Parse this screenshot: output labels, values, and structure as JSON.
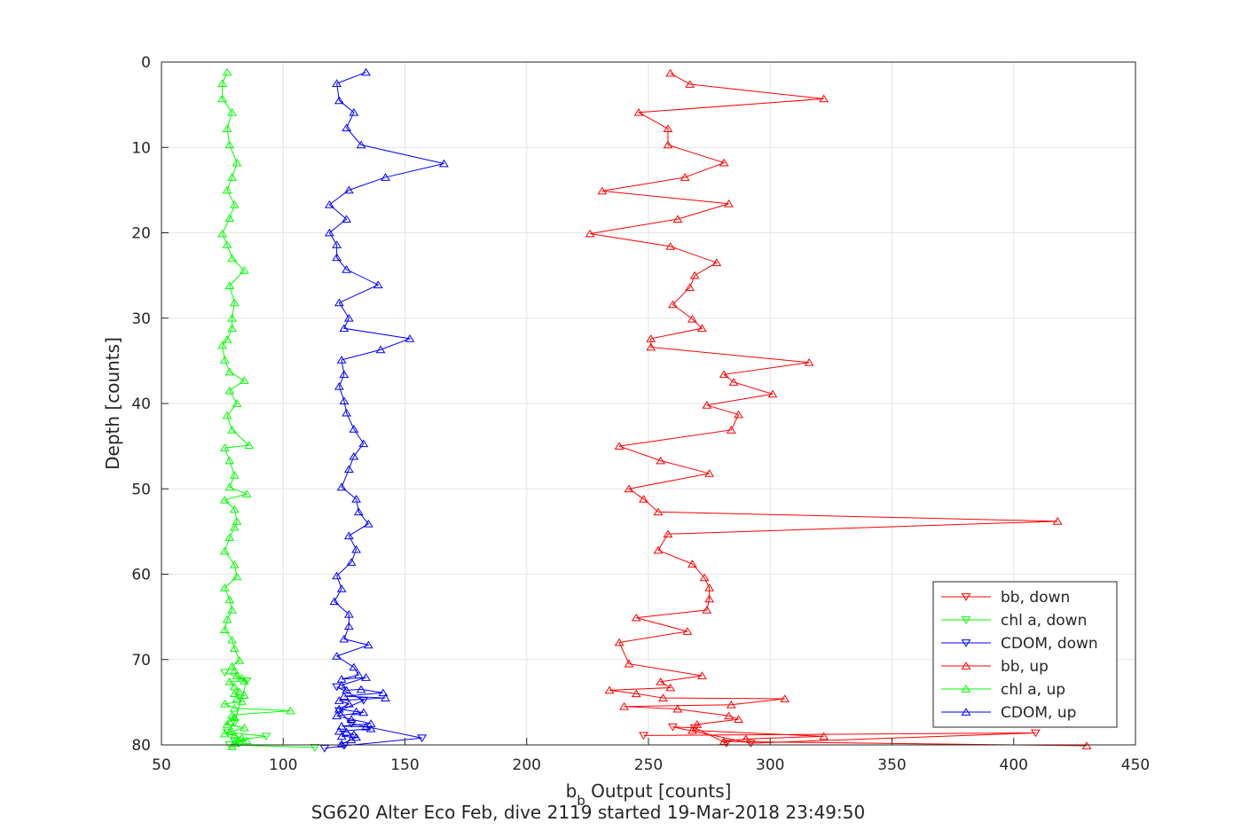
{
  "chart_data": {
    "type": "line",
    "title": "",
    "footer": "SG620 Alter Eco Feb, dive 2119 started 19-Mar-2018 23:49:50",
    "xlabel_main": "b",
    "xlabel_sub": "b",
    "xlabel_rest": " Output [counts]",
    "ylabel": "Depth [counts]",
    "xlim": [
      50,
      450
    ],
    "ylim": [
      0,
      80
    ],
    "y_reversed": true,
    "x_ticks": [
      50,
      100,
      150,
      200,
      250,
      300,
      350,
      400,
      450
    ],
    "y_ticks": [
      0,
      10,
      20,
      30,
      40,
      50,
      60,
      70,
      80
    ],
    "grid": true,
    "legend_position": "lower-right",
    "series": [
      {
        "name": "bb, down",
        "color": "#ff0000",
        "marker": "triangle-down",
        "x": [
          248,
          409,
          292,
          260,
          269,
          282
        ],
        "y": [
          78.9,
          78.6,
          79.8,
          77.9,
          78.0,
          79.8
        ]
      },
      {
        "name": "chl a, down",
        "color": "#00ff00",
        "marker": "triangle-down",
        "x": [
          76,
          85,
          80,
          77,
          93,
          80,
          82,
          78,
          113
        ],
        "y": [
          71.5,
          72.5,
          77.4,
          78.5,
          79.0,
          79.5,
          79.8,
          80.0,
          80.3
        ]
      },
      {
        "name": "CDOM, down",
        "color": "#0000ff",
        "marker": "triangle-down",
        "x": [
          122,
          133,
          123,
          128,
          157,
          125,
          117
        ],
        "y": [
          73.2,
          74.8,
          76.0,
          77.5,
          79.2,
          80.1,
          80.4
        ]
      },
      {
        "name": "bb, up",
        "color": "#ff0000",
        "marker": "triangle-up",
        "x": [
          259,
          267,
          322,
          246,
          258,
          258,
          281,
          265,
          231,
          283,
          262,
          226,
          259,
          278,
          269,
          267,
          260,
          268,
          272,
          251,
          251,
          316,
          281,
          285,
          301,
          274,
          287,
          284,
          238,
          255,
          275,
          242,
          248,
          254,
          418,
          258,
          254,
          268,
          273,
          275,
          275,
          274,
          245,
          266,
          238,
          242,
          272,
          255,
          259,
          234,
          245,
          256,
          306,
          284,
          240,
          262,
          283,
          287,
          270,
          268,
          322,
          290,
          281,
          430
        ],
        "y": [
          1.3,
          2.6,
          4.3,
          5.9,
          7.8,
          9.7,
          11.8,
          13.5,
          15.1,
          16.6,
          18.4,
          20.1,
          21.6,
          23.5,
          25.0,
          26.4,
          28.4,
          30.1,
          31.2,
          32.4,
          33.4,
          35.2,
          36.6,
          37.5,
          38.9,
          40.2,
          41.3,
          43.1,
          45.0,
          46.7,
          48.2,
          50.0,
          51.2,
          52.7,
          53.8,
          55.3,
          57.2,
          58.8,
          60.4,
          61.6,
          62.9,
          64.2,
          65.1,
          66.7,
          68.0,
          70.5,
          71.9,
          72.6,
          73.3,
          73.6,
          74.0,
          74.5,
          74.6,
          75.3,
          75.5,
          75.8,
          76.6,
          77.0,
          77.6,
          78.3,
          79.0,
          79.3,
          79.6,
          80.1
        ]
      },
      {
        "name": "chl a, up",
        "color": "#00ff00",
        "marker": "triangle-up",
        "x": [
          77,
          75,
          75,
          79,
          77,
          78,
          81,
          79,
          77,
          80,
          78,
          75,
          77,
          79,
          84,
          78,
          80,
          79,
          79,
          77,
          75,
          76,
          78,
          84,
          78,
          81,
          77,
          79,
          86,
          76,
          78,
          80,
          78,
          85,
          76,
          80,
          81,
          80,
          78,
          76,
          80,
          81,
          76,
          78,
          79,
          77,
          76,
          79,
          80,
          82,
          79,
          80,
          81,
          83,
          84,
          78,
          80,
          82,
          80,
          84,
          81,
          83,
          76,
          80,
          103,
          79,
          80,
          78,
          77,
          84,
          79,
          76,
          80,
          83,
          85,
          80,
          79
        ],
        "y": [
          1.2,
          2.5,
          4.3,
          5.9,
          7.8,
          9.7,
          11.8,
          13.5,
          15.0,
          16.7,
          18.3,
          20.1,
          21.4,
          23.0,
          24.4,
          26.2,
          28.2,
          30.0,
          31.2,
          32.5,
          33.2,
          34.9,
          36.3,
          37.3,
          38.5,
          40.0,
          41.4,
          43.1,
          44.9,
          45.2,
          46.7,
          48.4,
          49.8,
          50.6,
          51.3,
          52.4,
          53.8,
          54.5,
          55.7,
          57.3,
          58.9,
          60.3,
          61.6,
          63.0,
          64.2,
          65.3,
          66.5,
          67.7,
          68.7,
          70.1,
          70.8,
          71.3,
          71.9,
          72.2,
          72.5,
          72.6,
          73.2,
          73.8,
          74.0,
          74.2,
          74.6,
          74.9,
          75.2,
          75.7,
          76.0,
          76.5,
          76.8,
          77.3,
          77.6,
          78.0,
          78.4,
          78.7,
          78.9,
          79.2,
          79.5,
          79.8,
          80.2
        ]
      },
      {
        "name": "CDOM, up",
        "color": "#0000ff",
        "marker": "triangle-up",
        "x": [
          134,
          122,
          123,
          129,
          126,
          132,
          166,
          142,
          127,
          119,
          126,
          119,
          122,
          122,
          126,
          139,
          123,
          127,
          125,
          152,
          140,
          124,
          125,
          123,
          125,
          126,
          129,
          133,
          129,
          127,
          124,
          130,
          131,
          135,
          127,
          130,
          128,
          122,
          124,
          121,
          127,
          127,
          125,
          135,
          122,
          129,
          131,
          124,
          134,
          124,
          126,
          132,
          141,
          125,
          142,
          123,
          127,
          123,
          130,
          133,
          122,
          128,
          136,
          124,
          134,
          136,
          123,
          126,
          129,
          124,
          130,
          128,
          124
        ],
        "y": [
          1.2,
          2.5,
          4.5,
          5.9,
          7.7,
          9.7,
          11.9,
          13.5,
          15.0,
          16.7,
          18.4,
          20.0,
          21.4,
          22.9,
          24.3,
          26.1,
          28.2,
          30.0,
          31.2,
          32.4,
          33.7,
          34.9,
          36.6,
          38.0,
          39.7,
          41.1,
          43.0,
          44.7,
          46.2,
          47.7,
          49.8,
          51.2,
          52.7,
          54.1,
          55.5,
          57.1,
          58.6,
          60.2,
          61.7,
          63.2,
          64.7,
          66.1,
          67.6,
          68.3,
          69.6,
          70.9,
          71.8,
          72.3,
          72.1,
          73.0,
          73.6,
          73.5,
          73.9,
          74.3,
          74.5,
          74.8,
          75.2,
          75.8,
          76.1,
          76.2,
          76.6,
          77.0,
          77.5,
          77.8,
          77.9,
          78.1,
          78.4,
          78.5,
          78.8,
          79.0,
          79.1,
          79.4,
          79.9
        ]
      }
    ]
  }
}
